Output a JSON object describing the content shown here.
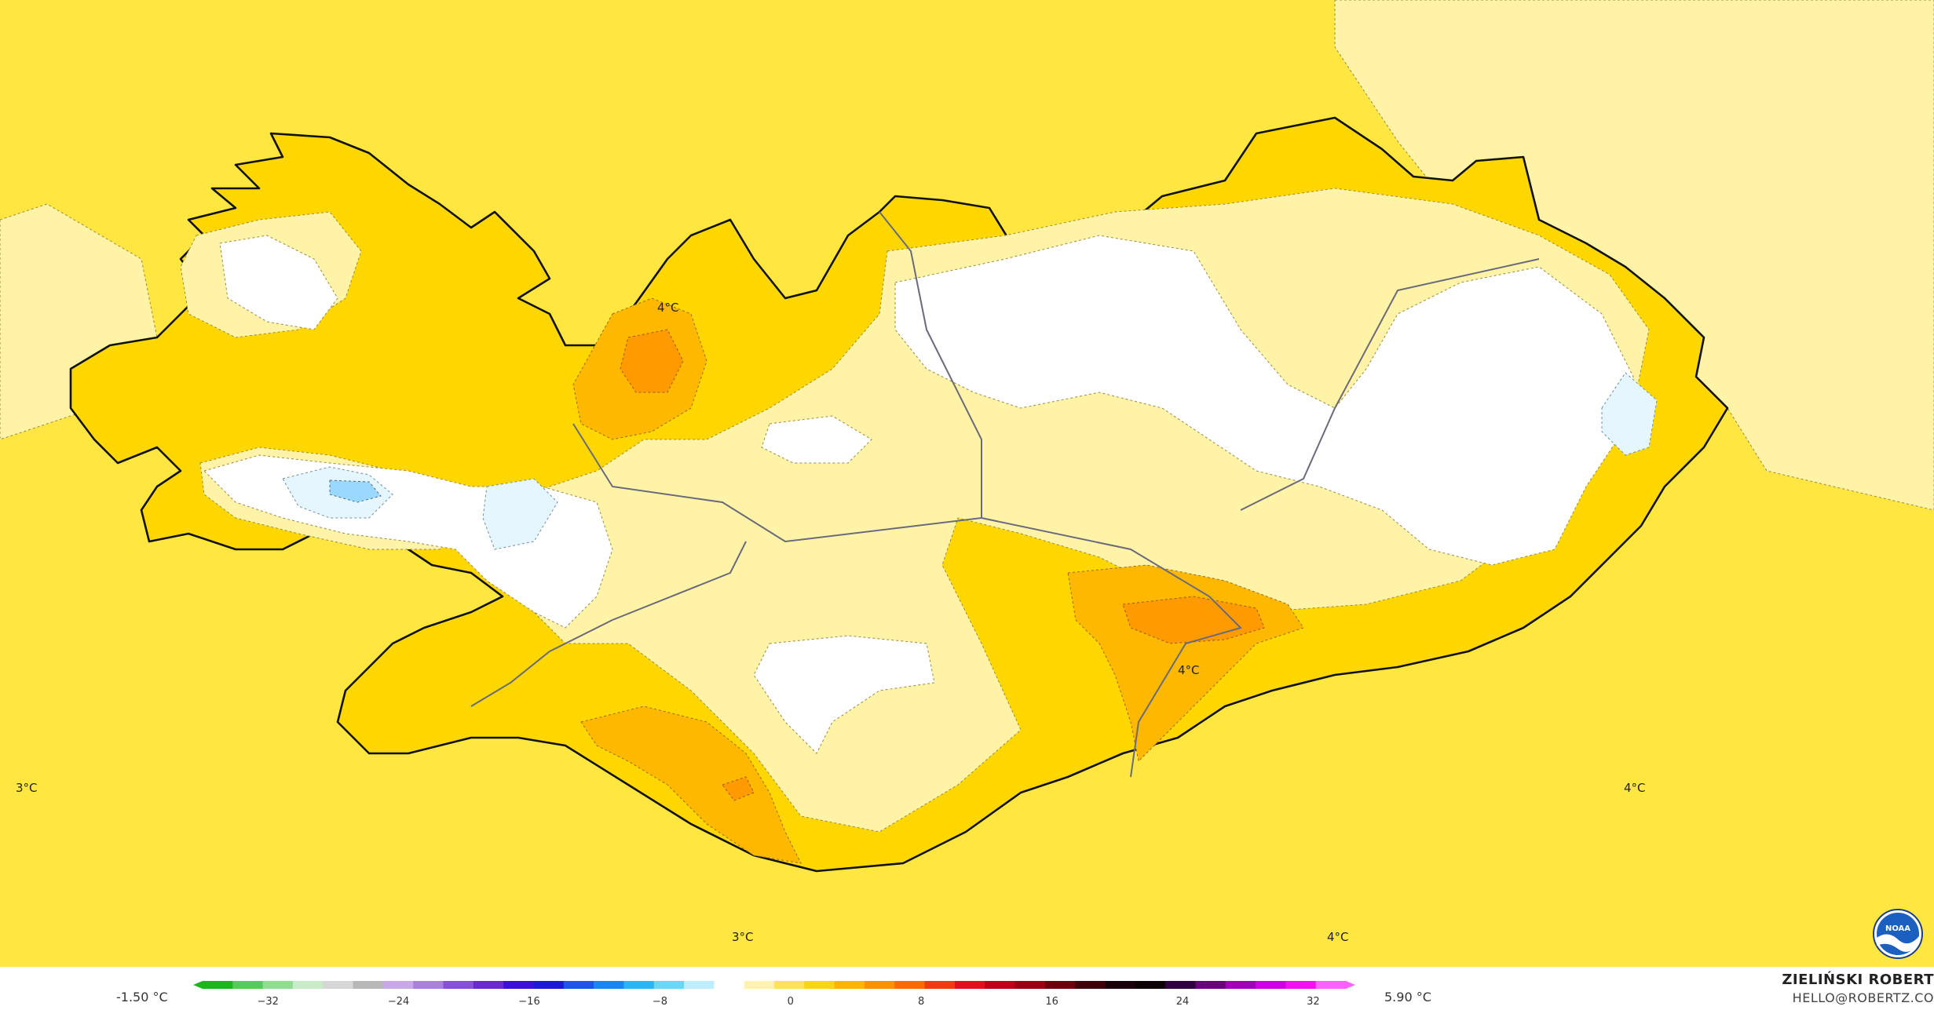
{
  "map": {
    "labels": [
      {
        "id": "label-west",
        "text": "3°C"
      },
      {
        "id": "label-north",
        "text": "4°C"
      },
      {
        "id": "label-central-south",
        "text": "4°C"
      },
      {
        "id": "label-east",
        "text": "4°C"
      },
      {
        "id": "label-south-west",
        "text": "3°C"
      },
      {
        "id": "label-south-east",
        "text": "4°C"
      }
    ]
  },
  "legend": {
    "min_label": "-1.50 °C",
    "max_label": "5.90 °C",
    "ticks": [
      "−32",
      "−24",
      "−16",
      "−8",
      "0",
      "8",
      "16",
      "24",
      "32"
    ],
    "tick_values": [
      -32,
      -24,
      -16,
      -8,
      0,
      8,
      16,
      24,
      32
    ],
    "range": [
      -36,
      34
    ],
    "colors": [
      "#1db51d",
      "#55cc55",
      "#8fdd8f",
      "#c7ecc7",
      "#d6d6d6",
      "#b7b7b7",
      "#c8a8e8",
      "#a97fe0",
      "#8850d8",
      "#6a28d0",
      "#3d10d8",
      "#1b1bd6",
      "#1a56e8",
      "#1a86f0",
      "#2ab6f4",
      "#6ad6f8",
      "#bdeeff",
      "#ffffff",
      "#fff2b0",
      "#ffe25a",
      "#ffd21a",
      "#ffb400",
      "#ff9000",
      "#ff6a00",
      "#f03a10",
      "#e0101e",
      "#c00018",
      "#9a0012",
      "#6e000c",
      "#40000a",
      "#1a0008",
      "#0a0006",
      "#300040",
      "#6a0080",
      "#a000b8",
      "#d000e0",
      "#f010f0",
      "#ff60ff"
    ],
    "colors_by_role": {
      "land_warm": "#ffd700",
      "sea": "#ffe640",
      "pale": "#fff3a8",
      "cold_white": "#ffffff",
      "ice_blue": "#e6f6ff",
      "deep_blue": "#9ad8ff",
      "orange": "#ffb800",
      "deep_orange": "#ff9a00"
    }
  },
  "credit": {
    "name": "ZIELIŃSKI ROBERT",
    "email": "HELLO@ROBERTZ.CO"
  },
  "logo": {
    "icon": "noaa-logo-icon",
    "text": "NOAA"
  }
}
